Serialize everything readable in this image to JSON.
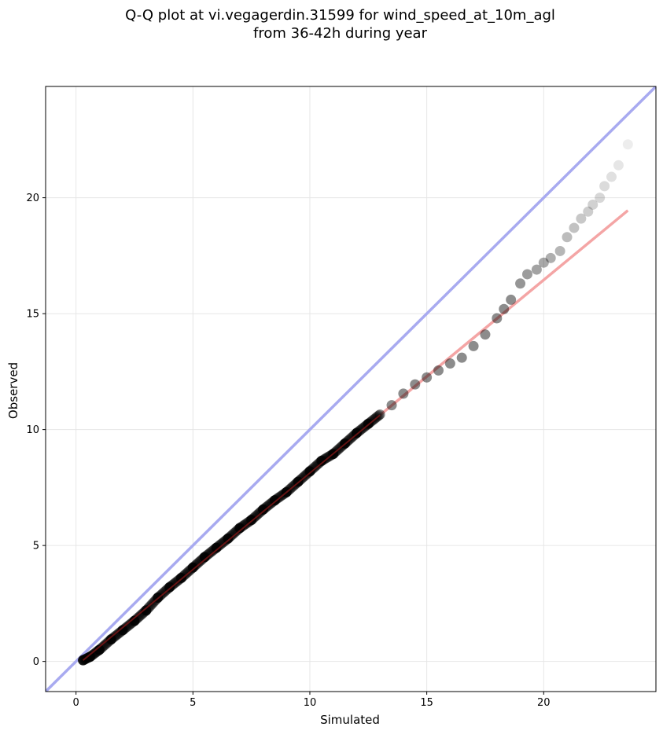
{
  "chart_data": {
    "type": "scatter",
    "title_lines": [
      "Q-Q plot at vi.vegagerdin.31599 for wind_speed_at_10m_agl",
      "from 36-42h during year"
    ],
    "xlabel": "Simulated",
    "ylabel": "Observed",
    "xlim": [
      -1.3,
      24.8
    ],
    "ylim": [
      -1.3,
      24.8
    ],
    "xticks": [
      0,
      5,
      10,
      15,
      20
    ],
    "yticks": [
      0,
      5,
      10,
      15,
      20
    ],
    "grid": true,
    "reference_line": {
      "name": "1:1 line",
      "color": "#a8aaf0",
      "points": [
        [
          -1.3,
          -1.3
        ],
        [
          24.8,
          24.8
        ]
      ]
    },
    "fit_line": {
      "name": "fit",
      "color": "#f4a5a5",
      "points": [
        [
          0.3,
          0.05
        ],
        [
          23.6,
          19.45
        ]
      ]
    },
    "points": {
      "color": "#000000",
      "x": [
        0.3,
        0.6,
        1.0,
        1.5,
        2.0,
        2.5,
        3.0,
        3.5,
        4.0,
        4.5,
        5.0,
        5.5,
        6.0,
        6.5,
        7.0,
        7.5,
        8.0,
        8.5,
        9.0,
        9.5,
        10.0,
        10.5,
        11.0,
        11.5,
        12.0,
        12.5,
        13.0,
        13.5,
        14.0,
        14.5,
        15.0,
        15.5,
        16.0,
        16.5,
        17.0,
        17.5,
        18.0,
        18.3,
        18.6,
        19.0,
        19.3,
        19.7,
        20.0,
        20.3,
        20.7,
        21.0,
        21.3,
        21.6,
        21.9,
        22.1,
        22.4,
        22.6,
        22.9,
        23.2,
        23.6
      ],
      "y": [
        0.05,
        0.2,
        0.5,
        0.95,
        1.35,
        1.75,
        2.2,
        2.75,
        3.2,
        3.6,
        4.05,
        4.5,
        4.9,
        5.3,
        5.75,
        6.1,
        6.55,
        6.95,
        7.3,
        7.75,
        8.2,
        8.65,
        8.95,
        9.4,
        9.85,
        10.25,
        10.65,
        11.05,
        11.55,
        11.95,
        12.25,
        12.55,
        12.85,
        13.1,
        13.6,
        14.1,
        14.8,
        15.2,
        15.6,
        16.3,
        16.7,
        16.9,
        17.2,
        17.4,
        17.7,
        18.3,
        18.7,
        19.1,
        19.4,
        19.7,
        20.0,
        20.5,
        20.9,
        21.4,
        22.3
      ]
    }
  }
}
